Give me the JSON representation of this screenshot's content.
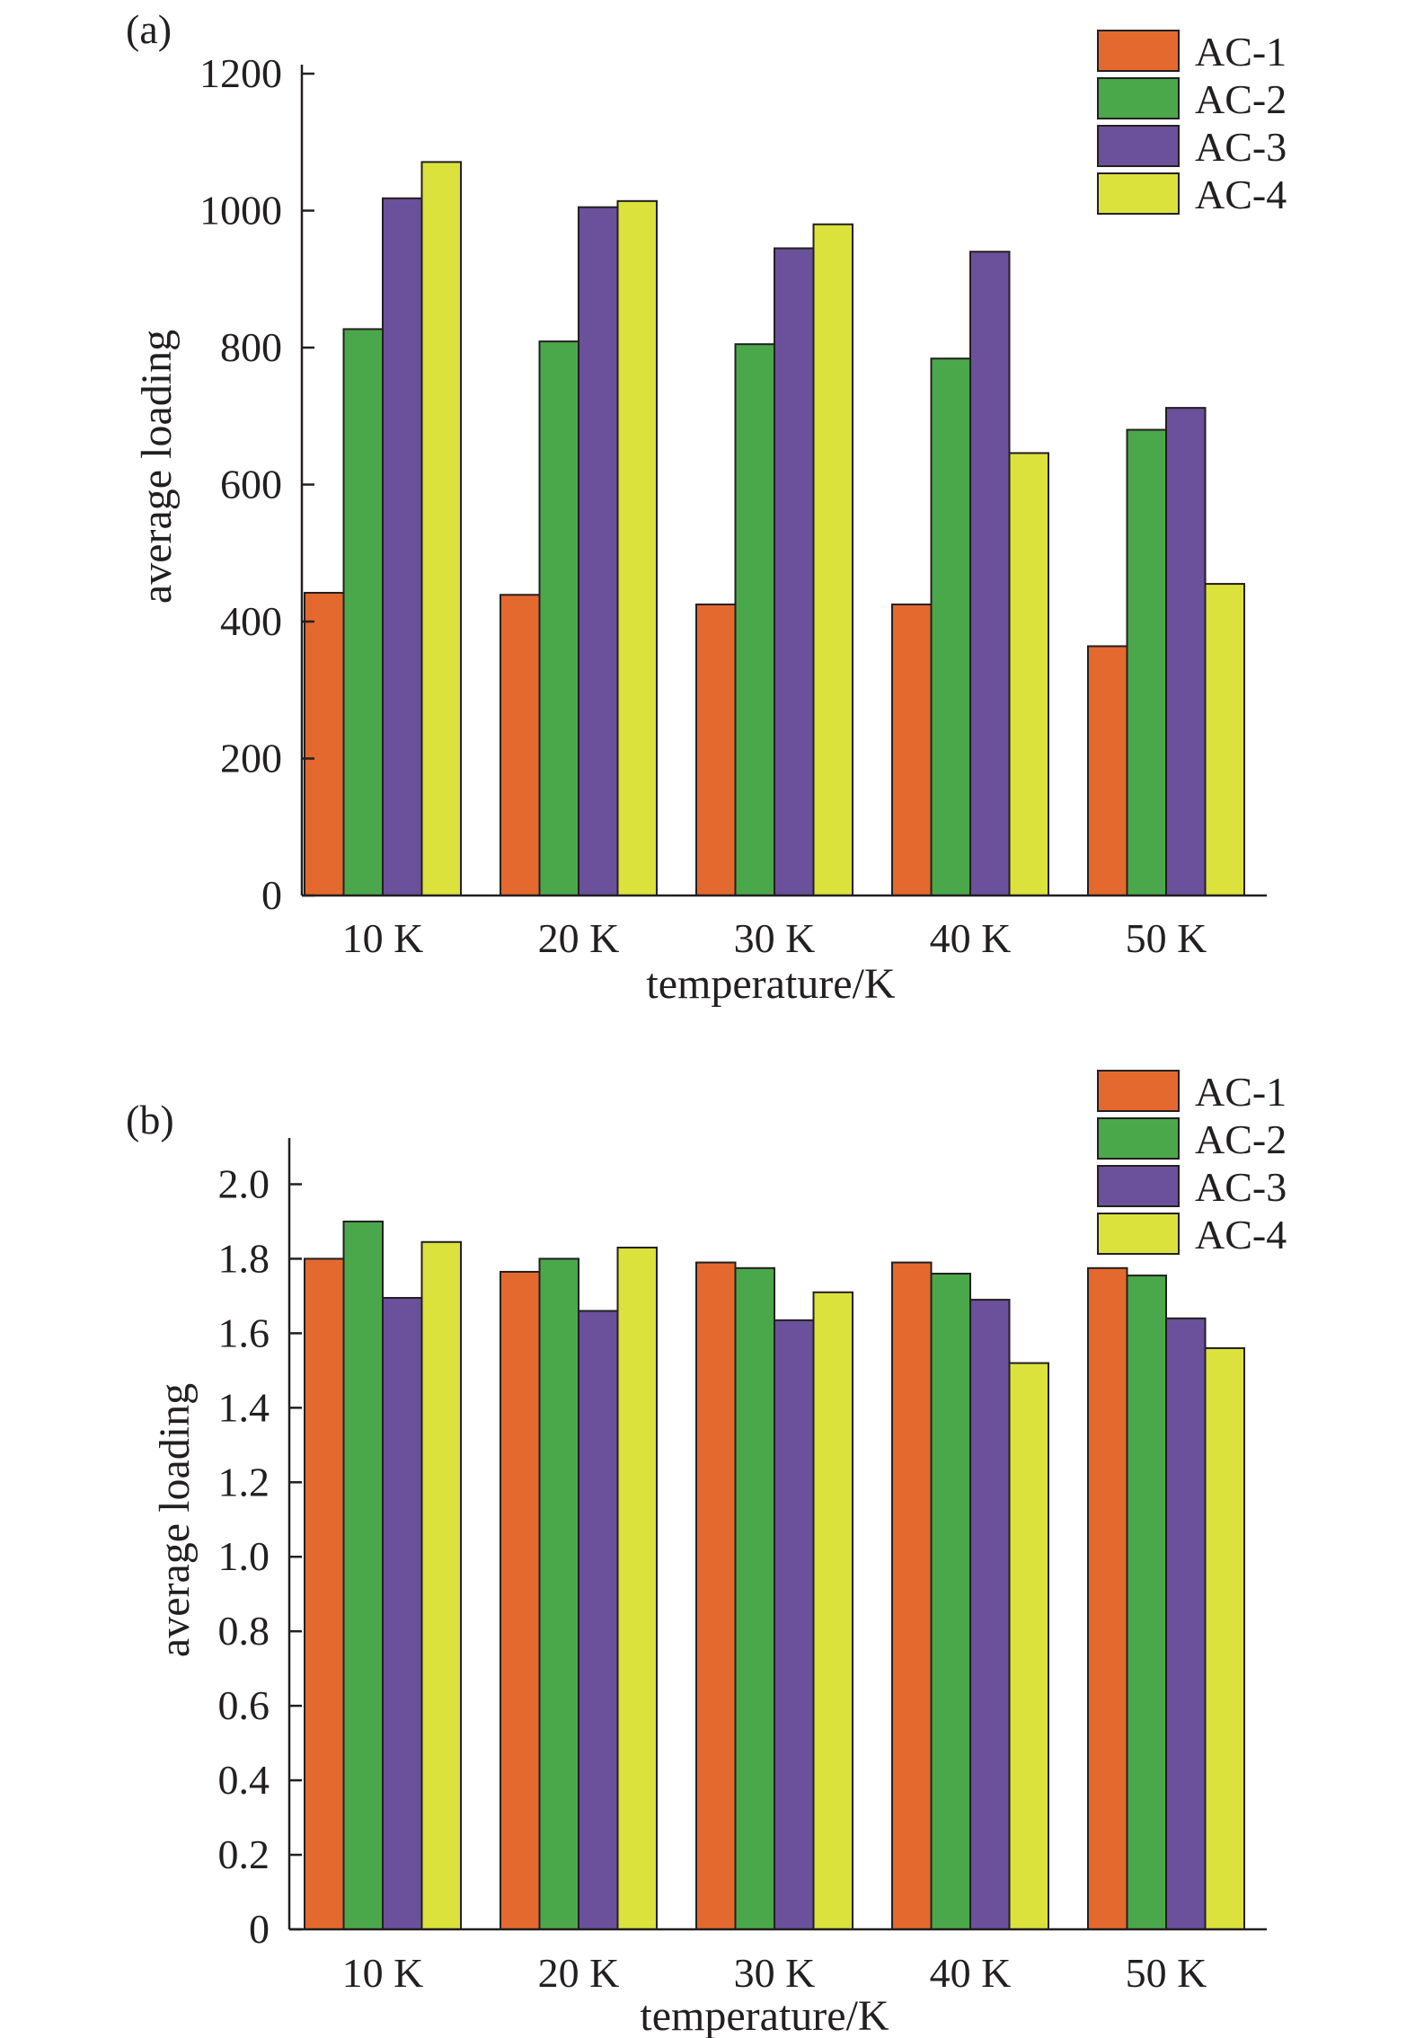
{
  "chart_data": [
    {
      "type": "bar",
      "panel_label": "(a)",
      "categories": [
        "10 K",
        "20 K",
        "30 K",
        "40 K",
        "50 K"
      ],
      "series": [
        {
          "name": "AC-1",
          "color": "#e4692e",
          "values": [
            442,
            439,
            425,
            425,
            364
          ]
        },
        {
          "name": "AC-2",
          "color": "#4aa84b",
          "values": [
            827,
            809,
            805,
            784,
            680
          ]
        },
        {
          "name": "AC-3",
          "color": "#6b509c",
          "values": [
            1018,
            1005,
            945,
            940,
            712
          ]
        },
        {
          "name": "AC-4",
          "color": "#dbe23c",
          "values": [
            1071,
            1014,
            980,
            646,
            455
          ]
        }
      ],
      "xlabel": "temperature/K",
      "ylabel": "average loading",
      "ylim": [
        0,
        1200
      ],
      "yticks": [
        "0",
        "200",
        "400",
        "600",
        "800",
        "1000",
        "1200"
      ],
      "grid": false,
      "legend": "top-right"
    },
    {
      "type": "bar",
      "panel_label": "(b)",
      "categories": [
        "10 K",
        "20 K",
        "30 K",
        "40 K",
        "50 K"
      ],
      "series": [
        {
          "name": "AC-1",
          "color": "#e4692e",
          "values": [
            1.8,
            1.765,
            1.79,
            1.79,
            1.775
          ]
        },
        {
          "name": "AC-2",
          "color": "#4aa84b",
          "values": [
            1.9,
            1.8,
            1.775,
            1.76,
            1.755
          ]
        },
        {
          "name": "AC-3",
          "color": "#6b509c",
          "values": [
            1.695,
            1.66,
            1.635,
            1.69,
            1.64
          ]
        },
        {
          "name": "AC-4",
          "color": "#dbe23c",
          "values": [
            1.845,
            1.83,
            1.71,
            1.52,
            1.56
          ]
        }
      ],
      "xlabel": "temperature/K",
      "ylabel": "average loading",
      "ylim": [
        0,
        2.1
      ],
      "yticks": [
        "0",
        "0.2",
        "0.4",
        "0.6",
        "0.8",
        "1.0",
        "1.2",
        "1.4",
        "1.6",
        "1.8",
        "2.0"
      ],
      "grid": false,
      "legend": "top-right"
    }
  ]
}
